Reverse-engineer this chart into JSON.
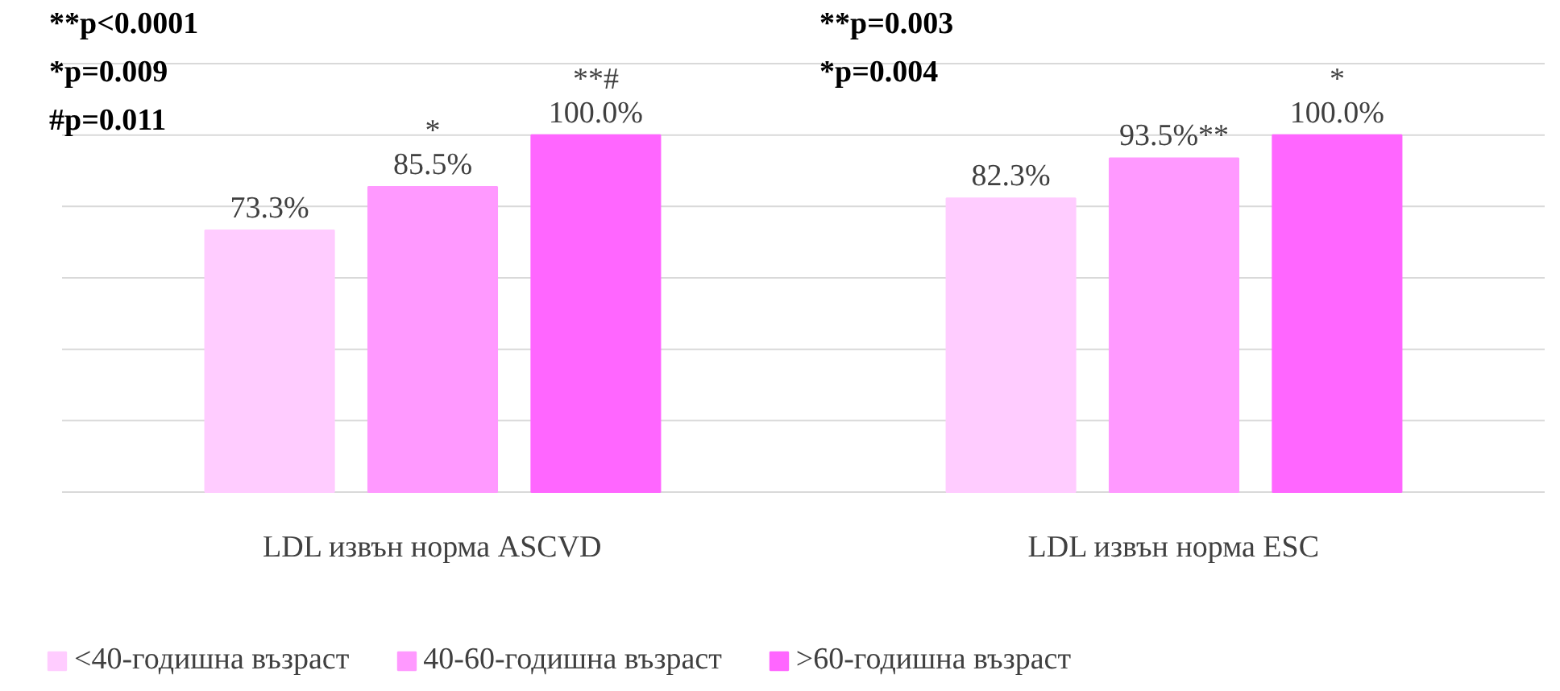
{
  "chart_data": {
    "type": "bar",
    "categories": [
      "LDL извън норма ASCVD",
      "LDL извън норма ESC"
    ],
    "series": [
      {
        "name": "<40-годишна възраст",
        "color": "#ffccff",
        "values": [
          73.3,
          82.3
        ],
        "value_labels": [
          "73.3%",
          "82.3%"
        ]
      },
      {
        "name": "40-60-годишна възраст",
        "color": "#ff99ff",
        "values": [
          85.5,
          93.5
        ],
        "value_labels": [
          "*\n85.5%",
          "93.5%**"
        ]
      },
      {
        "name": ">60-годишна възраст",
        "color": "#ff66ff",
        "values": [
          100.0,
          100.0
        ],
        "value_labels": [
          "**#\n100.0%",
          "*\n100.0%"
        ]
      }
    ],
    "ylim": [
      0,
      120
    ],
    "yticks": [
      {
        "value": 0,
        "label": null
      },
      {
        "value": 20,
        "label": null
      },
      {
        "value": 40,
        "label": null
      },
      {
        "value": 60,
        "label": null
      },
      {
        "value": 80,
        "label": null
      },
      {
        "value": 100,
        "label": null
      },
      {
        "value": 120,
        "label": null
      }
    ],
    "tick_labels": "x",
    "grid": "y",
    "legend": "bottom",
    "annotations": [
      "**p<0.0001",
      "*p=0.009",
      "#p=0.011",
      "**p=0.003",
      "*p=0.004"
    ]
  }
}
